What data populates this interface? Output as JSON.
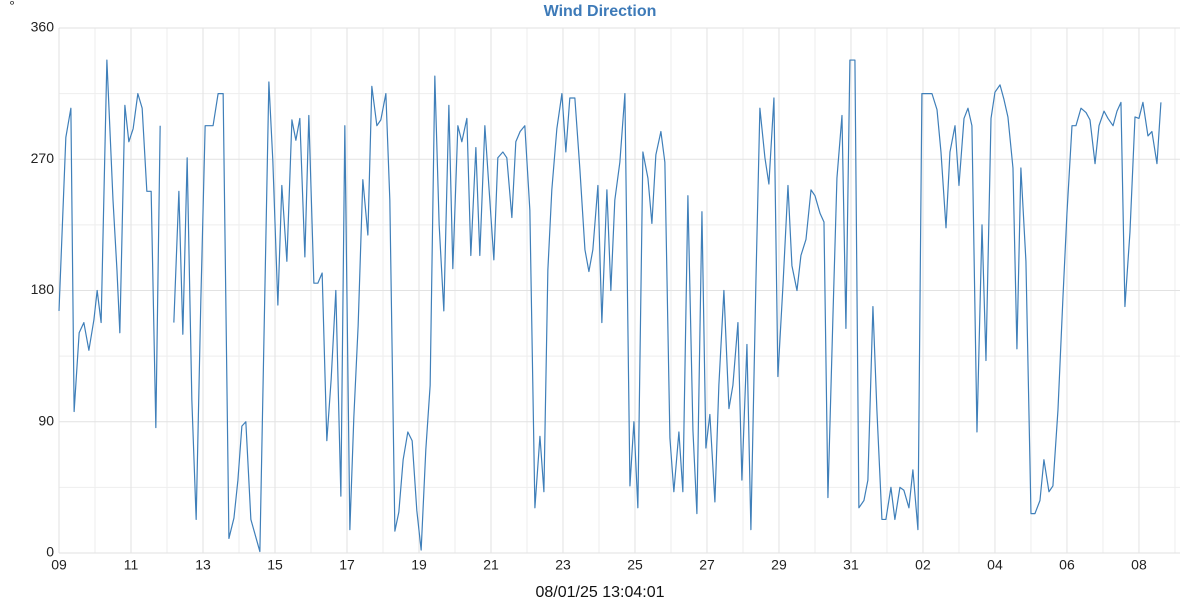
{
  "chart_data": {
    "type": "line",
    "title": "Wind Direction",
    "y_unit": "°",
    "x_label": "08/01/25 13:04:01",
    "grid": true,
    "xlim": [
      0,
      31.14
    ],
    "xticks": [
      {
        "value": 0,
        "label": "09"
      },
      {
        "value": 2,
        "label": "11"
      },
      {
        "value": 4,
        "label": "13"
      },
      {
        "value": 6,
        "label": "15"
      },
      {
        "value": 8,
        "label": "17"
      },
      {
        "value": 10,
        "label": "19"
      },
      {
        "value": 12,
        "label": "21"
      },
      {
        "value": 14,
        "label": "23"
      },
      {
        "value": 16,
        "label": "25"
      },
      {
        "value": 18,
        "label": "27"
      },
      {
        "value": 20,
        "label": "29"
      },
      {
        "value": 22,
        "label": "31"
      },
      {
        "value": 24,
        "label": "02"
      },
      {
        "value": 26,
        "label": "04"
      },
      {
        "value": 28,
        "label": "06"
      },
      {
        "value": 30,
        "label": "08"
      }
    ],
    "ylim": [
      0,
      360
    ],
    "yticks": [
      0,
      90,
      180,
      270,
      360
    ],
    "x": [
      0,
      0.19,
      0.33,
      0.42,
      0.56,
      0.69,
      0.83,
      0.97,
      1.06,
      1.17,
      1.33,
      1.5,
      1.61,
      1.69,
      1.83,
      1.94,
      2.06,
      2.19,
      2.31,
      2.44,
      2.56,
      2.69,
      2.81,
      3.0,
      3.19,
      3.33,
      3.44,
      3.56,
      3.69,
      3.81,
      3.94,
      4.06,
      4.28,
      4.42,
      4.56,
      4.72,
      4.86,
      4.97,
      5.08,
      5.19,
      5.33,
      5.58,
      5.83,
      5.94,
      6.08,
      6.19,
      6.33,
      6.47,
      6.58,
      6.69,
      6.83,
      6.94,
      7.08,
      7.19,
      7.31,
      7.44,
      7.56,
      7.69,
      7.83,
      7.94,
      8.08,
      8.19,
      8.31,
      8.44,
      8.58,
      8.69,
      8.83,
      8.94,
      9.08,
      9.19,
      9.33,
      9.44,
      9.56,
      9.69,
      9.81,
      9.94,
      10.06,
      10.19,
      10.31,
      10.44,
      10.56,
      10.69,
      10.83,
      10.94,
      11.08,
      11.19,
      11.33,
      11.44,
      11.58,
      11.69,
      11.83,
      11.94,
      12.08,
      12.19,
      12.33,
      12.44,
      12.58,
      12.69,
      12.81,
      12.94,
      13.08,
      13.22,
      13.36,
      13.47,
      13.58,
      13.69,
      13.83,
      13.97,
      14.08,
      14.19,
      14.33,
      14.47,
      14.61,
      14.72,
      14.83,
      14.97,
      15.08,
      15.22,
      15.33,
      15.44,
      15.58,
      15.72,
      15.86,
      15.97,
      16.08,
      16.22,
      16.36,
      16.47,
      16.58,
      16.72,
      16.83,
      16.97,
      17.08,
      17.22,
      17.33,
      17.47,
      17.61,
      17.72,
      17.86,
      17.97,
      18.08,
      18.22,
      18.33,
      18.47,
      18.61,
      18.72,
      18.86,
      18.97,
      19.11,
      19.22,
      19.36,
      19.47,
      19.61,
      19.72,
      19.86,
      19.97,
      20.11,
      20.25,
      20.36,
      20.5,
      20.61,
      20.75,
      20.89,
      21,
      21.14,
      21.25,
      21.36,
      21.5,
      21.61,
      21.75,
      21.86,
      21.97,
      22.11,
      22.22,
      22.36,
      22.47,
      22.61,
      22.72,
      22.86,
      22.97,
      23.11,
      23.22,
      23.36,
      23.47,
      23.61,
      23.72,
      23.86,
      23.97,
      24.11,
      24.25,
      24.39,
      24.5,
      24.64,
      24.75,
      24.89,
      25,
      25.14,
      25.25,
      25.36,
      25.5,
      25.64,
      25.75,
      25.89,
      26,
      26.14,
      26.25,
      26.36,
      26.5,
      26.61,
      26.72,
      26.86,
      27,
      27.11,
      27.25,
      27.36,
      27.5,
      27.61,
      27.75,
      27.89,
      28,
      28.14,
      28.25,
      28.39,
      28.53,
      28.64,
      28.78,
      28.89,
      29.03,
      29.14,
      29.28,
      29.39,
      29.5,
      29.61,
      29.75,
      29.89,
      30,
      30.11,
      30.25,
      30.36,
      30.5,
      30.61
    ],
    "series": [
      {
        "name": "Wind Direction",
        "color": "#3f7fb9",
        "values": [
          166,
          285,
          305,
          97,
          151,
          158,
          139,
          160,
          180,
          158,
          338,
          242,
          194,
          151,
          307,
          282,
          291,
          315,
          305,
          248,
          248,
          86,
          293,
          null,
          158,
          248,
          150,
          271,
          105,
          23,
          173,
          293,
          293,
          315,
          315,
          10,
          24,
          50,
          87,
          90,
          23,
          1,
          323,
          269,
          170,
          252,
          200,
          297,
          283,
          298,
          203,
          300,
          185,
          185,
          192,
          77,
          119,
          180,
          39,
          293,
          16,
          93,
          156,
          256,
          218,
          320,
          293,
          297,
          315,
          242,
          15,
          28,
          64,
          83,
          77,
          29,
          2,
          71,
          115,
          327,
          225,
          166,
          307,
          195,
          293,
          282,
          298,
          204,
          278,
          204,
          293,
          252,
          201,
          271,
          275,
          271,
          230,
          282,
          289,
          293,
          235,
          31,
          80,
          42,
          194,
          249,
          291,
          315,
          275,
          312,
          312,
          263,
          208,
          193,
          208,
          252,
          158,
          249,
          180,
          242,
          268,
          315,
          46,
          90,
          31,
          275,
          257,
          226,
          273,
          289,
          268,
          79,
          42,
          83,
          42,
          245,
          84,
          27,
          234,
          72,
          95,
          35,
          115,
          180,
          99,
          115,
          158,
          50,
          143,
          16,
          187,
          305,
          271,
          253,
          312,
          121,
          183,
          252,
          197,
          180,
          204,
          215,
          249,
          245,
          233,
          227,
          38,
          163,
          257,
          300,
          154,
          338,
          338,
          31,
          36,
          50,
          169,
          98,
          23,
          23,
          45,
          23,
          45,
          43,
          31,
          57,
          16,
          315,
          315,
          315,
          304,
          275,
          223,
          275,
          293,
          252,
          298,
          305,
          293,
          83,
          225,
          132,
          298,
          316,
          321,
          311,
          299,
          264,
          140,
          264,
          200,
          27,
          27,
          36,
          64,
          42,
          46,
          98,
          176,
          233,
          293,
          293,
          305,
          302,
          297,
          267,
          293,
          303,
          298,
          293,
          303,
          309,
          169,
          220,
          299,
          298,
          309,
          286,
          289,
          267,
          309
        ]
      }
    ]
  }
}
